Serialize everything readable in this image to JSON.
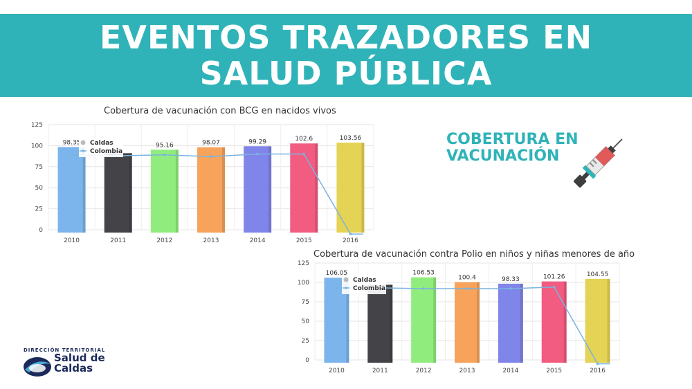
{
  "banner": {
    "line1": "EVENTOS TRAZADORES EN",
    "line2": "SALUD PÚBLICA"
  },
  "side_title": {
    "line1": "COBERTURA EN",
    "line2": "VACUNACIÓN"
  },
  "logo": {
    "top_text": "DIRECCIÓN TERRITORIAL",
    "name_line1": "Salud de",
    "name_line2": "Caldas",
    "icon": "syringe-icon"
  },
  "colors": {
    "banner": "#2fb3b8",
    "colombia_line": "#7ab3e0"
  },
  "chart_data": [
    {
      "type": "bar",
      "title": "Cobertura de vacunación con BCG en nacidos vivos",
      "categories": [
        "2010",
        "2011",
        "2012",
        "2013",
        "2014",
        "2015",
        "2016"
      ],
      "yticks": [
        "0",
        "25",
        "50",
        "75",
        "100",
        "125"
      ],
      "ylim": [
        0,
        125
      ],
      "legend": "top-left",
      "series": [
        {
          "name": "Caldas",
          "type": "bar",
          "values": [
            98.35,
            91,
            95.16,
            98.07,
            99.29,
            102.6,
            103.56
          ],
          "labels": [
            "98.35",
            "",
            "95.16",
            "98.07",
            "99.29",
            "102.6",
            "103.56"
          ],
          "colors": [
            "#7cb5ec",
            "#434348",
            "#90ed7d",
            "#f7a35c",
            "#8085e9",
            "#f15c80",
            "#e4d354"
          ]
        },
        {
          "name": "Colombia",
          "type": "line",
          "values": [
            89,
            88,
            89,
            87,
            90,
            90,
            -5
          ]
        }
      ]
    },
    {
      "type": "bar",
      "title": "Cobertura de vacunación contra Polio en niños y niñas menores de año",
      "categories": [
        "2010",
        "2011",
        "2012",
        "2013",
        "2014",
        "2015",
        "2016"
      ],
      "yticks": [
        "0",
        "25",
        "50",
        "75",
        "100",
        "125"
      ],
      "ylim": [
        0,
        125
      ],
      "legend": "top-left",
      "series": [
        {
          "name": "Caldas",
          "type": "bar",
          "values": [
            106.05,
            97,
            106.53,
            100.4,
            98.33,
            101.26,
            104.55
          ],
          "labels": [
            "106.05",
            "",
            "106.53",
            "100.4",
            "98.33",
            "101.26",
            "104.55"
          ],
          "colors": [
            "#7cb5ec",
            "#434348",
            "#90ed7d",
            "#f7a35c",
            "#8085e9",
            "#f15c80",
            "#e4d354"
          ]
        },
        {
          "name": "Colombia",
          "type": "line",
          "values": [
            93,
            93,
            92,
            92,
            92,
            94,
            -5
          ]
        }
      ]
    }
  ]
}
